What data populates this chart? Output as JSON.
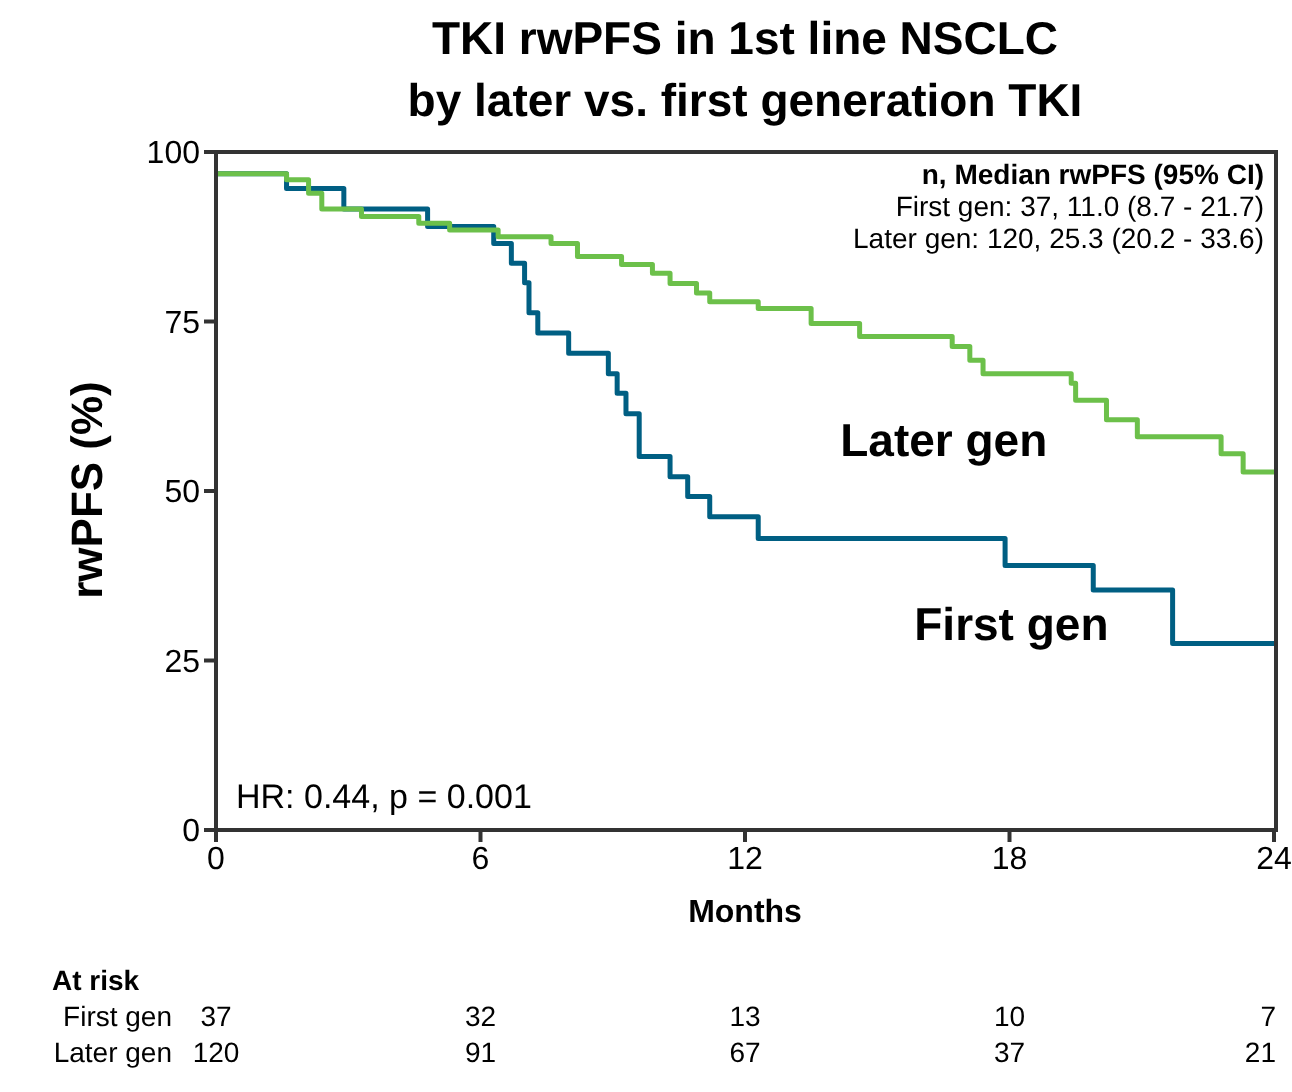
{
  "chart_data": {
    "type": "step",
    "title": "TKI rwPFS in 1st line NSCLC",
    "subtitle": "by later vs. first generation TKI",
    "xlabel": "Months",
    "ylabel": "rwPFS (%)",
    "xlim": [
      0,
      24
    ],
    "xticks": [
      0,
      6,
      12,
      18,
      24
    ],
    "ylim": [
      0,
      100
    ],
    "yticks": [
      0,
      25,
      50,
      75,
      100
    ],
    "marker": "none",
    "line_style": "solid",
    "series": [
      {
        "name": "First gen",
        "color": "#005f83",
        "x": [
          0,
          1.6,
          2.9,
          4.8,
          6.3,
          6.7,
          7.0,
          7.1,
          7.3,
          8.0,
          8.9,
          9.1,
          9.3,
          9.6,
          10.3,
          10.7,
          11.2,
          12.3,
          17.9,
          19.9,
          21.7,
          24
        ],
        "values": [
          96.8,
          94.6,
          91.6,
          89,
          86.5,
          83.6,
          80.7,
          76.3,
          73.3,
          70.3,
          67.3,
          64.4,
          61.4,
          55.1,
          52.1,
          49.2,
          46.2,
          43,
          39,
          35.4,
          27.5,
          27.5
        ]
      },
      {
        "name": "Later gen",
        "color": "#6cc04a",
        "x": [
          0,
          1.6,
          2.1,
          2.4,
          3.3,
          4.6,
          5.3,
          6.4,
          7.6,
          8.2,
          9.2,
          9.9,
          10.3,
          10.9,
          11.2,
          12.3,
          13.5,
          14.6,
          16.7,
          17.1,
          17.4,
          19.4,
          19.5,
          20.2,
          20.9,
          22.8,
          23.3,
          24
        ],
        "values": [
          96.8,
          95.9,
          93.9,
          91.6,
          90.5,
          89.5,
          88.5,
          87.5,
          86.5,
          84.6,
          83.4,
          82.1,
          80.6,
          79.2,
          77.9,
          76.9,
          74.7,
          72.8,
          71.3,
          69.3,
          67.3,
          65.9,
          63.4,
          60.5,
          58,
          55.5,
          52.8,
          52.8
        ]
      }
    ],
    "annotations": [
      "n, Median rwPFS (95% CI)",
      "First gen: 37, 11.0 (8.7 - 21.7)",
      "Later gen: 120, 25.3 (20.2 - 33.6)",
      "HR: 0.44, p = 0.001",
      "At risk",
      "First gen",
      "37",
      "32",
      "13",
      "10",
      "7",
      "Later gen",
      "120",
      "91",
      "67",
      "37",
      "21"
    ]
  }
}
